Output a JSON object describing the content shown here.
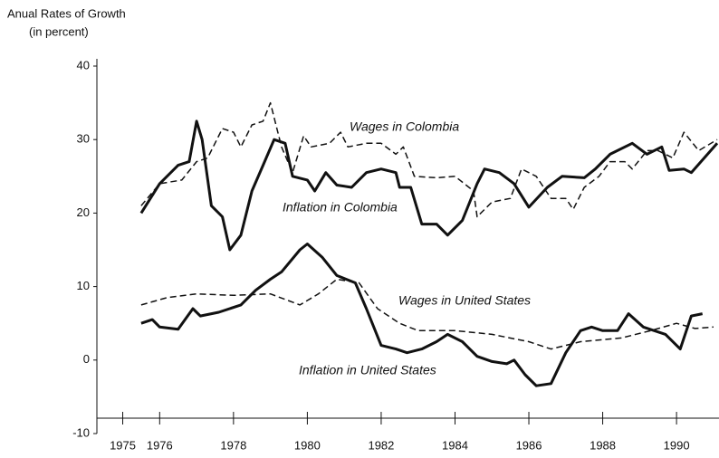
{
  "chart_data": {
    "type": "line",
    "title": "Anual Rates of Growth",
    "subtitle": "(in percent)",
    "xlim": [
      1974.3,
      1991.15
    ],
    "xticks": [
      1975,
      1976,
      1978,
      1980,
      1982,
      1984,
      1986,
      1988,
      1990
    ],
    "ylim": [
      -10,
      40
    ],
    "yticks": [
      -10,
      0,
      10,
      20,
      30,
      40
    ],
    "series": [
      {
        "name": "Wages in Colombia",
        "color": "#111111",
        "style": "dashed",
        "x": [
          1975.5,
          1976.0,
          1976.6,
          1977.0,
          1977.3,
          1977.7,
          1978.0,
          1978.2,
          1978.5,
          1978.8,
          1979.0,
          1979.3,
          1979.6,
          1979.9,
          1980.1,
          1980.6,
          1980.9,
          1981.1,
          1981.6,
          1982.0,
          1982.4,
          1982.6,
          1982.9,
          1983.5,
          1984.0,
          1984.5,
          1984.6,
          1985.0,
          1985.5,
          1985.8,
          1986.2,
          1986.6,
          1987.0,
          1987.2,
          1987.5,
          1987.9,
          1988.2,
          1988.6,
          1988.8,
          1989.2,
          1989.5,
          1989.9,
          1990.2,
          1990.6,
          1991.1
        ],
        "values": [
          21,
          24,
          24.5,
          27,
          27.5,
          31.5,
          31,
          29,
          32,
          32.5,
          35,
          29,
          25.5,
          30.5,
          29,
          29.5,
          31,
          29,
          29.5,
          29.5,
          28,
          29,
          25,
          24.8,
          25,
          23,
          19.5,
          21.5,
          22,
          26,
          25,
          22,
          22,
          20.5,
          23.5,
          25,
          27,
          27,
          26,
          28.5,
          28.5,
          27.5,
          31,
          28.5,
          30
        ]
      },
      {
        "name": "Inflation in Colombia",
        "color": "#111111",
        "style": "solid",
        "x": [
          1975.5,
          1976.0,
          1976.5,
          1976.8,
          1977.0,
          1977.15,
          1977.4,
          1977.7,
          1977.9,
          1978.2,
          1978.5,
          1978.8,
          1979.1,
          1979.4,
          1979.6,
          1980.0,
          1980.2,
          1980.5,
          1980.8,
          1981.2,
          1981.6,
          1982.0,
          1982.4,
          1982.5,
          1982.8,
          1983.1,
          1983.5,
          1983.8,
          1984.2,
          1984.6,
          1984.8,
          1985.2,
          1985.6,
          1986.0,
          1986.5,
          1986.9,
          1987.5,
          1987.8,
          1988.2,
          1988.8,
          1989.2,
          1989.6,
          1989.8,
          1990.2,
          1990.4,
          1991.1
        ],
        "values": [
          20,
          24,
          26.5,
          27,
          32.5,
          30,
          21,
          19.5,
          15,
          17,
          23,
          26.5,
          30,
          29.5,
          25,
          24.5,
          23,
          25.5,
          23.8,
          23.5,
          25.5,
          26,
          25.5,
          23.5,
          23.5,
          18.5,
          18.5,
          17,
          19,
          24,
          26,
          25.5,
          24,
          20.8,
          23.5,
          25,
          24.8,
          26,
          28,
          29.5,
          28,
          29,
          25.8,
          26,
          25.5,
          29.5
        ]
      },
      {
        "name": "Wages in United States",
        "color": "#111111",
        "style": "dashed",
        "x": [
          1975.5,
          1976.2,
          1977.0,
          1978.0,
          1979.0,
          1979.8,
          1980.3,
          1980.8,
          1981.4,
          1981.9,
          1982.5,
          1983.0,
          1984.0,
          1985.0,
          1986.0,
          1986.6,
          1987.4,
          1988.5,
          1989.3,
          1990.0,
          1990.5,
          1991.0
        ],
        "values": [
          7.5,
          8.5,
          9,
          8.8,
          9,
          7.5,
          9,
          11,
          10.5,
          7,
          5,
          4,
          4,
          3.5,
          2.5,
          1.5,
          2.5,
          3,
          4,
          5,
          4.3,
          4.5
        ]
      },
      {
        "name": "Inflation in United States",
        "color": "#111111",
        "style": "solid",
        "x": [
          1975.5,
          1975.8,
          1976.0,
          1976.5,
          1976.9,
          1977.1,
          1977.6,
          1978.2,
          1978.6,
          1979.0,
          1979.3,
          1979.8,
          1980.0,
          1980.4,
          1980.8,
          1981.3,
          1981.6,
          1982.0,
          1982.4,
          1982.7,
          1983.1,
          1983.5,
          1983.8,
          1984.2,
          1984.6,
          1985.0,
          1985.4,
          1985.6,
          1985.9,
          1986.2,
          1986.6,
          1987.0,
          1987.4,
          1987.7,
          1988.0,
          1988.4,
          1988.7,
          1989.1,
          1989.7,
          1990.1,
          1990.4,
          1990.7
        ],
        "values": [
          5,
          5.5,
          4.5,
          4.2,
          7,
          6,
          6.5,
          7.5,
          9.5,
          11,
          12,
          15,
          15.8,
          14,
          11.5,
          10.5,
          7,
          2,
          1.5,
          1,
          1.5,
          2.5,
          3.5,
          2.5,
          0.5,
          -0.2,
          -0.5,
          0,
          -2,
          -3.5,
          -3.2,
          1,
          4,
          4.5,
          4,
          4,
          6.3,
          4.5,
          3.5,
          1.5,
          6,
          6.3
        ]
      }
    ]
  }
}
